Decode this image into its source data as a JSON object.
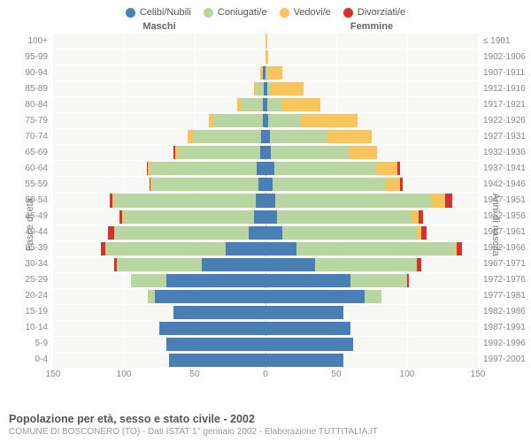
{
  "legend": [
    {
      "label": "Celibi/Nubili",
      "color": "#4a7fb6"
    },
    {
      "label": "Coniugati/e",
      "color": "#b9d5a2"
    },
    {
      "label": "Vedovi/e",
      "color": "#f7c55b"
    },
    {
      "label": "Divorziati/e",
      "color": "#d4322c"
    }
  ],
  "headers": {
    "male": "Maschi",
    "female": "Femmine"
  },
  "axis_left_label": "Fasce di età",
  "axis_right_label": "Anni di nascita",
  "x_ticks": [
    150,
    100,
    50,
    0,
    50,
    100,
    150
  ],
  "x_max": 150,
  "colors": {
    "background": "#f7f7f5",
    "grid": "#ffffff",
    "dash": "#bbbbbb",
    "text": "#888888"
  },
  "title": "Popolazione per età, sesso e stato civile - 2002",
  "subtitle": "COMUNE DI BOSCONERO (TO) - Dati ISTAT 1° gennaio 2002 - Elaborazione TUTTITALIA.IT",
  "rows": [
    {
      "age": "100+",
      "birth": "≤ 1901",
      "m": [
        0,
        0,
        0,
        0
      ],
      "f": [
        0,
        0,
        1,
        0
      ]
    },
    {
      "age": "95-99",
      "birth": "1902-1906",
      "m": [
        0,
        0,
        0,
        0
      ],
      "f": [
        0,
        0,
        2,
        0
      ]
    },
    {
      "age": "90-94",
      "birth": "1907-1911",
      "m": [
        2,
        0,
        2,
        0
      ],
      "f": [
        0,
        2,
        10,
        0
      ]
    },
    {
      "age": "85-89",
      "birth": "1912-1916",
      "m": [
        1,
        5,
        2,
        0
      ],
      "f": [
        1,
        3,
        23,
        0
      ]
    },
    {
      "age": "80-84",
      "birth": "1917-1921",
      "m": [
        2,
        15,
        3,
        0
      ],
      "f": [
        1,
        10,
        28,
        0
      ]
    },
    {
      "age": "75-79",
      "birth": "1922-1926",
      "m": [
        2,
        35,
        3,
        0
      ],
      "f": [
        2,
        23,
        40,
        0
      ]
    },
    {
      "age": "70-74",
      "birth": "1927-1931",
      "m": [
        3,
        48,
        4,
        0
      ],
      "f": [
        3,
        40,
        32,
        0
      ]
    },
    {
      "age": "65-69",
      "birth": "1932-1936",
      "m": [
        4,
        58,
        2,
        1
      ],
      "f": [
        4,
        55,
        20,
        0
      ]
    },
    {
      "age": "60-64",
      "birth": "1937-1941",
      "m": [
        6,
        75,
        2,
        1
      ],
      "f": [
        6,
        72,
        15,
        2
      ]
    },
    {
      "age": "55-59",
      "birth": "1942-1946",
      "m": [
        5,
        75,
        1,
        1
      ],
      "f": [
        5,
        80,
        10,
        2
      ]
    },
    {
      "age": "50-54",
      "birth": "1947-1951",
      "m": [
        7,
        100,
        1,
        2
      ],
      "f": [
        7,
        110,
        10,
        5
      ]
    },
    {
      "age": "45-49",
      "birth": "1952-1956",
      "m": [
        8,
        92,
        1,
        2
      ],
      "f": [
        8,
        95,
        5,
        3
      ]
    },
    {
      "age": "40-44",
      "birth": "1957-1961",
      "m": [
        12,
        95,
        0,
        4
      ],
      "f": [
        12,
        95,
        3,
        4
      ]
    },
    {
      "age": "35-39",
      "birth": "1962-1966",
      "m": [
        28,
        85,
        0,
        3
      ],
      "f": [
        22,
        112,
        1,
        4
      ]
    },
    {
      "age": "30-34",
      "birth": "1967-1971",
      "m": [
        45,
        60,
        0,
        2
      ],
      "f": [
        35,
        72,
        0,
        3
      ]
    },
    {
      "age": "25-29",
      "birth": "1972-1976",
      "m": [
        70,
        25,
        0,
        0
      ],
      "f": [
        60,
        40,
        0,
        1
      ]
    },
    {
      "age": "20-24",
      "birth": "1977-1981",
      "m": [
        78,
        5,
        0,
        0
      ],
      "f": [
        70,
        12,
        0,
        0
      ]
    },
    {
      "age": "15-19",
      "birth": "1982-1986",
      "m": [
        65,
        0,
        0,
        0
      ],
      "f": [
        55,
        0,
        0,
        0
      ]
    },
    {
      "age": "10-14",
      "birth": "1987-1991",
      "m": [
        75,
        0,
        0,
        0
      ],
      "f": [
        60,
        0,
        0,
        0
      ]
    },
    {
      "age": "5-9",
      "birth": "1992-1996",
      "m": [
        70,
        0,
        0,
        0
      ],
      "f": [
        62,
        0,
        0,
        0
      ]
    },
    {
      "age": "0-4",
      "birth": "1997-2001",
      "m": [
        68,
        0,
        0,
        0
      ],
      "f": [
        55,
        0,
        0,
        0
      ]
    }
  ]
}
